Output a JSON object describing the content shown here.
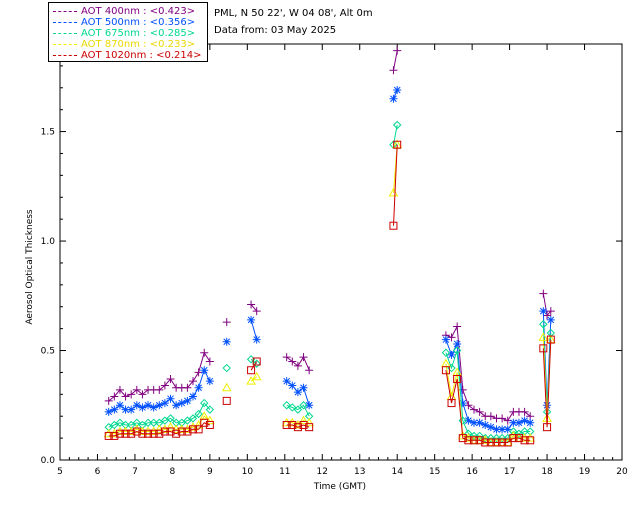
{
  "info": {
    "site_line": "PML, N 50 22', W 04 08', Alt 0m",
    "date_line": "Data from: 03 May 2025"
  },
  "legend": [
    {
      "label": "AOT  400nm : <0.423>",
      "color": "#800080",
      "marker": "plus"
    },
    {
      "label": "AOT  500nm : <0.356>",
      "color": "#0050ff",
      "marker": "star"
    },
    {
      "label": "AOT  675nm : <0.285>",
      "color": "#00d890",
      "marker": "diamond"
    },
    {
      "label": "AOT  870nm : <0.233>",
      "color": "#f0f000",
      "marker": "triangle"
    },
    {
      "label": "AOT 1020nm : <0.214>",
      "color": "#cc0000",
      "marker": "square"
    }
  ],
  "chart_data": {
    "type": "scatter",
    "title": "",
    "xlabel": "Time (GMT)",
    "ylabel": "Aerosol Optical Thickness",
    "xlim": [
      5,
      20
    ],
    "ylim": [
      0,
      1.9
    ],
    "xticks": [
      5,
      6,
      7,
      8,
      9,
      10,
      11,
      12,
      13,
      14,
      15,
      16,
      17,
      18,
      19,
      20
    ],
    "yticks": [
      0.0,
      0.5,
      1.0,
      1.5
    ],
    "ytick_labels": [
      "0.0",
      "0.5",
      "1.0",
      "1.5"
    ],
    "series": [
      {
        "name": "AOT 400nm",
        "segments": [
          [
            [
              6.3,
              0.27
            ],
            [
              6.45,
              0.29
            ],
            [
              6.6,
              0.32
            ],
            [
              6.75,
              0.29
            ],
            [
              6.9,
              0.3
            ],
            [
              7.05,
              0.32
            ],
            [
              7.2,
              0.3
            ],
            [
              7.35,
              0.32
            ],
            [
              7.5,
              0.32
            ],
            [
              7.65,
              0.32
            ],
            [
              7.8,
              0.34
            ],
            [
              7.95,
              0.37
            ],
            [
              8.1,
              0.33
            ],
            [
              8.25,
              0.33
            ],
            [
              8.4,
              0.33
            ],
            [
              8.55,
              0.36
            ],
            [
              8.7,
              0.4
            ],
            [
              8.85,
              0.49
            ],
            [
              9.0,
              0.45
            ]
          ],
          [
            [
              9.45,
              0.63
            ]
          ],
          [
            [
              10.1,
              0.71
            ],
            [
              10.25,
              0.68
            ]
          ],
          [
            [
              11.05,
              0.47
            ],
            [
              11.2,
              0.45
            ],
            [
              11.35,
              0.43
            ],
            [
              11.5,
              0.47
            ],
            [
              11.65,
              0.41
            ]
          ],
          [
            [
              13.9,
              1.78
            ],
            [
              14.0,
              1.87
            ]
          ],
          [
            [
              15.3,
              0.57
            ],
            [
              15.45,
              0.56
            ],
            [
              15.6,
              0.61
            ],
            [
              15.75,
              0.32
            ],
            [
              15.9,
              0.25
            ],
            [
              16.05,
              0.23
            ],
            [
              16.2,
              0.22
            ],
            [
              16.35,
              0.2
            ],
            [
              16.5,
              0.2
            ],
            [
              16.65,
              0.19
            ],
            [
              16.8,
              0.19
            ],
            [
              16.95,
              0.18
            ],
            [
              17.1,
              0.22
            ],
            [
              17.25,
              0.22
            ],
            [
              17.4,
              0.22
            ],
            [
              17.55,
              0.2
            ]
          ],
          [
            [
              17.9,
              0.76
            ],
            [
              18.0,
              0.66
            ],
            [
              18.1,
              0.68
            ]
          ]
        ]
      },
      {
        "name": "AOT 500nm",
        "segments": [
          [
            [
              6.3,
              0.22
            ],
            [
              6.45,
              0.23
            ],
            [
              6.6,
              0.25
            ],
            [
              6.75,
              0.23
            ],
            [
              6.9,
              0.23
            ],
            [
              7.05,
              0.25
            ],
            [
              7.2,
              0.24
            ],
            [
              7.35,
              0.25
            ],
            [
              7.5,
              0.24
            ],
            [
              7.65,
              0.25
            ],
            [
              7.8,
              0.26
            ],
            [
              7.95,
              0.28
            ],
            [
              8.1,
              0.25
            ],
            [
              8.25,
              0.26
            ],
            [
              8.4,
              0.27
            ],
            [
              8.55,
              0.29
            ],
            [
              8.7,
              0.33
            ],
            [
              8.85,
              0.41
            ],
            [
              9.0,
              0.36
            ]
          ],
          [
            [
              9.45,
              0.54
            ]
          ],
          [
            [
              10.1,
              0.64
            ],
            [
              10.25,
              0.55
            ]
          ],
          [
            [
              11.05,
              0.36
            ],
            [
              11.2,
              0.34
            ],
            [
              11.35,
              0.31
            ],
            [
              11.5,
              0.33
            ],
            [
              11.65,
              0.25
            ]
          ],
          [
            [
              13.9,
              1.65
            ],
            [
              14.0,
              1.69
            ]
          ],
          [
            [
              15.3,
              0.55
            ],
            [
              15.45,
              0.48
            ],
            [
              15.6,
              0.53
            ],
            [
              15.75,
              0.26
            ],
            [
              15.9,
              0.18
            ],
            [
              16.05,
              0.17
            ],
            [
              16.2,
              0.17
            ],
            [
              16.35,
              0.16
            ],
            [
              16.5,
              0.15
            ],
            [
              16.65,
              0.14
            ],
            [
              16.8,
              0.14
            ],
            [
              16.95,
              0.14
            ],
            [
              17.1,
              0.17
            ],
            [
              17.25,
              0.17
            ],
            [
              17.4,
              0.18
            ],
            [
              17.55,
              0.17
            ]
          ],
          [
            [
              17.9,
              0.68
            ],
            [
              18.0,
              0.25
            ],
            [
              18.1,
              0.64
            ]
          ]
        ]
      },
      {
        "name": "AOT 675nm",
        "segments": [
          [
            [
              6.3,
              0.15
            ],
            [
              6.45,
              0.16
            ],
            [
              6.6,
              0.17
            ],
            [
              6.75,
              0.16
            ],
            [
              6.9,
              0.16
            ],
            [
              7.05,
              0.17
            ],
            [
              7.2,
              0.16
            ],
            [
              7.35,
              0.17
            ],
            [
              7.5,
              0.17
            ],
            [
              7.65,
              0.17
            ],
            [
              7.8,
              0.18
            ],
            [
              7.95,
              0.19
            ],
            [
              8.1,
              0.17
            ],
            [
              8.25,
              0.17
            ],
            [
              8.4,
              0.18
            ],
            [
              8.55,
              0.19
            ],
            [
              8.7,
              0.21
            ],
            [
              8.85,
              0.26
            ],
            [
              9.0,
              0.23
            ]
          ],
          [
            [
              9.45,
              0.42
            ]
          ],
          [
            [
              10.1,
              0.46
            ],
            [
              10.25,
              0.44
            ]
          ],
          [
            [
              11.05,
              0.25
            ],
            [
              11.2,
              0.24
            ],
            [
              11.35,
              0.23
            ],
            [
              11.5,
              0.25
            ],
            [
              11.65,
              0.2
            ]
          ],
          [
            [
              13.9,
              1.44
            ],
            [
              14.0,
              1.53
            ]
          ],
          [
            [
              15.3,
              0.49
            ],
            [
              15.45,
              0.42
            ],
            [
              15.6,
              0.5
            ],
            [
              15.75,
              0.18
            ],
            [
              15.9,
              0.12
            ],
            [
              16.05,
              0.11
            ],
            [
              16.2,
              0.11
            ],
            [
              16.35,
              0.1
            ],
            [
              16.5,
              0.1
            ],
            [
              16.65,
              0.1
            ],
            [
              16.8,
              0.1
            ],
            [
              16.95,
              0.1
            ],
            [
              17.1,
              0.13
            ],
            [
              17.25,
              0.12
            ],
            [
              17.4,
              0.13
            ],
            [
              17.55,
              0.13
            ]
          ],
          [
            [
              17.9,
              0.62
            ],
            [
              18.0,
              0.22
            ],
            [
              18.1,
              0.58
            ]
          ]
        ]
      },
      {
        "name": "AOT 870nm",
        "segments": [
          [
            [
              6.3,
              0.12
            ],
            [
              6.45,
              0.12
            ],
            [
              6.6,
              0.13
            ],
            [
              6.75,
              0.13
            ],
            [
              6.9,
              0.13
            ],
            [
              7.05,
              0.14
            ],
            [
              7.2,
              0.13
            ],
            [
              7.35,
              0.13
            ],
            [
              7.5,
              0.13
            ],
            [
              7.65,
              0.14
            ],
            [
              7.8,
              0.14
            ],
            [
              7.95,
              0.15
            ],
            [
              8.1,
              0.14
            ],
            [
              8.25,
              0.14
            ],
            [
              8.4,
              0.14
            ],
            [
              8.55,
              0.15
            ],
            [
              8.7,
              0.16
            ],
            [
              8.85,
              0.2
            ],
            [
              9.0,
              0.18
            ]
          ],
          [
            [
              9.45,
              0.33
            ]
          ],
          [
            [
              10.1,
              0.36
            ],
            [
              10.25,
              0.38
            ]
          ],
          [
            [
              11.05,
              0.17
            ],
            [
              11.2,
              0.17
            ],
            [
              11.35,
              0.16
            ],
            [
              11.5,
              0.18
            ],
            [
              11.65,
              0.17
            ]
          ],
          [
            [
              13.9,
              1.22
            ],
            [
              14.0,
              1.44
            ]
          ],
          [
            [
              15.3,
              0.44
            ],
            [
              15.45,
              0.29
            ],
            [
              15.6,
              0.4
            ],
            [
              15.75,
              0.11
            ],
            [
              15.9,
              0.1
            ],
            [
              16.05,
              0.09
            ],
            [
              16.2,
              0.09
            ],
            [
              16.35,
              0.09
            ],
            [
              16.5,
              0.08
            ],
            [
              16.65,
              0.08
            ],
            [
              16.8,
              0.08
            ],
            [
              16.95,
              0.08
            ],
            [
              17.1,
              0.11
            ],
            [
              17.25,
              0.1
            ],
            [
              17.4,
              0.1
            ],
            [
              17.55,
              0.1
            ]
          ],
          [
            [
              17.9,
              0.56
            ],
            [
              18.0,
              0.19
            ],
            [
              18.1,
              0.55
            ]
          ]
        ]
      },
      {
        "name": "AOT 1020nm",
        "segments": [
          [
            [
              6.3,
              0.11
            ],
            [
              6.45,
              0.11
            ],
            [
              6.6,
              0.12
            ],
            [
              6.75,
              0.12
            ],
            [
              6.9,
              0.12
            ],
            [
              7.05,
              0.13
            ],
            [
              7.2,
              0.12
            ],
            [
              7.35,
              0.12
            ],
            [
              7.5,
              0.12
            ],
            [
              7.65,
              0.12
            ],
            [
              7.8,
              0.13
            ],
            [
              7.95,
              0.13
            ],
            [
              8.1,
              0.12
            ],
            [
              8.25,
              0.13
            ],
            [
              8.4,
              0.13
            ],
            [
              8.55,
              0.14
            ],
            [
              8.7,
              0.14
            ],
            [
              8.85,
              0.17
            ],
            [
              9.0,
              0.16
            ]
          ],
          [
            [
              9.45,
              0.27
            ]
          ],
          [
            [
              10.1,
              0.41
            ],
            [
              10.25,
              0.45
            ]
          ],
          [
            [
              11.05,
              0.16
            ],
            [
              11.2,
              0.16
            ],
            [
              11.35,
              0.15
            ],
            [
              11.5,
              0.16
            ],
            [
              11.65,
              0.15
            ]
          ],
          [
            [
              13.9,
              1.07
            ],
            [
              14.0,
              1.44
            ]
          ],
          [
            [
              15.3,
              0.41
            ],
            [
              15.45,
              0.26
            ],
            [
              15.6,
              0.37
            ],
            [
              15.75,
              0.1
            ],
            [
              15.9,
              0.09
            ],
            [
              16.05,
              0.09
            ],
            [
              16.2,
              0.09
            ],
            [
              16.35,
              0.08
            ],
            [
              16.5,
              0.08
            ],
            [
              16.65,
              0.08
            ],
            [
              16.8,
              0.08
            ],
            [
              16.95,
              0.08
            ],
            [
              17.1,
              0.1
            ],
            [
              17.25,
              0.1
            ],
            [
              17.4,
              0.09
            ],
            [
              17.55,
              0.09
            ]
          ],
          [
            [
              17.9,
              0.51
            ],
            [
              18.0,
              0.15
            ],
            [
              18.1,
              0.55
            ]
          ]
        ]
      }
    ]
  }
}
